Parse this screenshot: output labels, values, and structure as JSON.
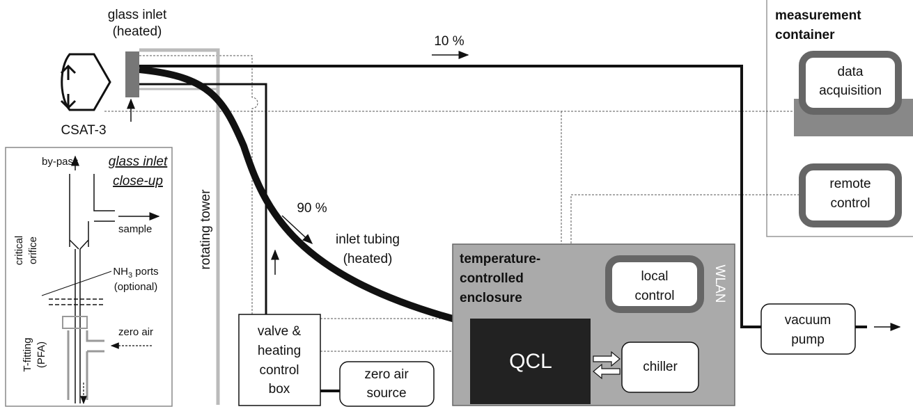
{
  "labels": {
    "glass_inlet": [
      "glass inlet",
      "(heated)"
    ],
    "csat": "CSAT-3",
    "flow_10": "10 %",
    "flow_90": "90 %",
    "inlet_tubing": [
      "inlet tubing",
      "(heated)"
    ],
    "rotating_tower": "rotating tower",
    "measurement_container": [
      "measurement",
      "container"
    ],
    "data_acquisition": [
      "data",
      "acquisition"
    ],
    "remote_control": [
      "remote",
      "control"
    ],
    "enclosure": [
      "temperature-",
      "controlled",
      "enclosure"
    ],
    "local_control": [
      "local",
      "control"
    ],
    "wlan": "WLAN",
    "qcl": "QCL",
    "chiller": "chiller",
    "vacuum_pump": [
      "vacuum",
      "pump"
    ],
    "valve_box": [
      "valve &",
      "heating",
      "control",
      "box"
    ],
    "zero_air_source": [
      "zero air",
      "source"
    ]
  },
  "closeup": {
    "title": [
      "glass inlet",
      "close-up"
    ],
    "bypass": "by-pass",
    "sample": "sample",
    "critical_orifice": [
      "critical",
      "orifice"
    ],
    "nh3_ports": {
      "main": "NH",
      "sub": "3",
      "rest": " ports"
    },
    "optional": "(optional)",
    "zero_air": "zero air",
    "t_fitting": [
      "T-fitting",
      "(PFA)"
    ]
  }
}
